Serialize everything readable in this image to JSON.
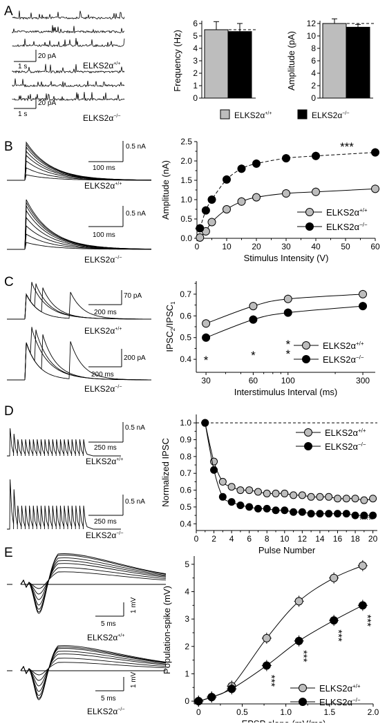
{
  "genotypes": {
    "wt_label": "ELKS2α+/+",
    "ko_label": "ELKS2α−/−",
    "wt_base": "ELKS2α",
    "wt_sup": "+/+",
    "ko_base": "ELKS2α",
    "ko_sup": "−/−",
    "wt_color": "#bdbdbd",
    "ko_color": "#000000"
  },
  "panelA": {
    "letter": "A",
    "scale_time": "1 s",
    "scale_current": "20 pA",
    "freq_chart": {
      "type": "bar",
      "ylabel": "Frequency (Hz)",
      "ylim": [
        0,
        6
      ],
      "yticks": [
        "0",
        "1",
        "2",
        "3",
        "4",
        "5",
        "6"
      ],
      "categories": [
        "ELKS2α+/+",
        "ELKS2α−/−"
      ],
      "values": [
        5.5,
        5.35
      ],
      "errors": [
        0.65,
        0.65
      ],
      "dashed_ref": 5.5
    },
    "amp_chart": {
      "type": "bar",
      "ylabel": "Amplitude (pA)",
      "ylim": [
        0,
        12
      ],
      "yticks": [
        "0",
        "2",
        "4",
        "6",
        "8",
        "10",
        "12"
      ],
      "categories": [
        "ELKS2α+/+",
        "ELKS2α−/−"
      ],
      "values": [
        12.0,
        11.4
      ],
      "errors": [
        0.75,
        0.45
      ],
      "dashed_ref": 12.0
    }
  },
  "panelB": {
    "letter": "B",
    "scale_time": "100 ms",
    "scale_current": "0.5 nA",
    "chart_data": {
      "type": "line",
      "xlabel": "Stimulus Intensity (V)",
      "ylabel": "Amplitude (nA)",
      "xlim": [
        0,
        60
      ],
      "ylim": [
        0,
        2.5
      ],
      "xticks": [
        "0",
        "10",
        "20",
        "30",
        "40",
        "50",
        "60"
      ],
      "yticks": [
        "0.0",
        "0.5",
        "1.0",
        "1.5",
        "2.0",
        "2.5"
      ],
      "x": [
        1,
        3,
        5,
        10,
        15,
        20,
        30,
        40,
        60
      ],
      "series": [
        {
          "name": "ELKS2α+/+",
          "values": [
            0.02,
            0.18,
            0.42,
            0.75,
            0.95,
            1.06,
            1.16,
            1.2,
            1.28
          ]
        },
        {
          "name": "ELKS2α−/−",
          "values": [
            0.26,
            0.72,
            1.0,
            1.52,
            1.8,
            1.93,
            2.07,
            2.13,
            2.22
          ]
        }
      ],
      "annotation": "***"
    }
  },
  "panelC": {
    "letter": "C",
    "wt_scale_current": "70 pA",
    "wt_scale_time": "200  ms",
    "ko_scale_current": "200 pA",
    "ko_scale_time": "200 ms",
    "chart_data": {
      "type": "line",
      "xlabel": "Interstimulus Interval (ms)",
      "ylabel_base": "IPSC",
      "ylabel_sub2": "2",
      "ylabel_mid": "/IPSC",
      "ylabel_sub1": "1",
      "x_scale": "log",
      "xlim": [
        26,
        360
      ],
      "ylim": [
        0.34,
        0.76
      ],
      "xticks": [
        "30",
        "60",
        "100",
        "300"
      ],
      "yticks": [
        "0.4",
        "0.5",
        "0.6",
        "0.7"
      ],
      "x": [
        30,
        60,
        100,
        300
      ],
      "series": [
        {
          "name": "ELKS2α+/+",
          "values": [
            0.565,
            0.645,
            0.678,
            0.7
          ]
        },
        {
          "name": "ELKS2α−/−",
          "values": [
            0.5,
            0.583,
            0.615,
            0.645
          ]
        }
      ],
      "annotations": [
        "*",
        "*",
        "*",
        "*"
      ]
    }
  },
  "panelD": {
    "letter": "D",
    "scale_current": "0.5 nA",
    "scale_time": "250 ms",
    "chart_data": {
      "type": "line",
      "xlabel": "Pulse Number",
      "ylabel": "Normalized IPSC",
      "xlim": [
        0,
        20.5
      ],
      "ylim": [
        0.36,
        1.05
      ],
      "xticks": [
        "0",
        "2",
        "4",
        "6",
        "8",
        "10",
        "12",
        "14",
        "16",
        "18",
        "20"
      ],
      "yticks": [
        "0.4",
        "0.5",
        "0.6",
        "0.7",
        "0.8",
        "0.9",
        "1.0"
      ],
      "x": [
        1,
        2,
        3,
        4,
        5,
        6,
        7,
        8,
        9,
        10,
        11,
        12,
        13,
        14,
        15,
        16,
        17,
        18,
        19,
        20
      ],
      "series": [
        {
          "name": "ELKS2α+/+",
          "values": [
            1.0,
            0.77,
            0.65,
            0.62,
            0.6,
            0.6,
            0.59,
            0.58,
            0.58,
            0.58,
            0.57,
            0.57,
            0.56,
            0.56,
            0.56,
            0.55,
            0.55,
            0.55,
            0.54,
            0.55
          ]
        },
        {
          "name": "ELKS2α−/−",
          "values": [
            1.0,
            0.72,
            0.56,
            0.53,
            0.51,
            0.5,
            0.49,
            0.49,
            0.48,
            0.48,
            0.47,
            0.47,
            0.46,
            0.46,
            0.46,
            0.46,
            0.46,
            0.45,
            0.45,
            0.45
          ]
        }
      ],
      "dashed_ref": 1.0,
      "annotation": "***"
    }
  },
  "panelE": {
    "letter": "E",
    "scale_time": "5 ms",
    "scale_voltage": "1 mV",
    "chart_data": {
      "type": "line",
      "xlabel": "EPSP slope (mV/ms)",
      "ylabel": "Population-spike (mV)",
      "xlim": [
        -0.05,
        2.0
      ],
      "ylim": [
        -0.1,
        5.3
      ],
      "xticks": [
        "0",
        "0.5",
        "1.0",
        "1.5",
        "2.0"
      ],
      "yticks": [
        "0",
        "1",
        "2",
        "3",
        "4",
        "5"
      ],
      "series": [
        {
          "name": "ELKS2α+/+",
          "x": [
            0.0,
            0.15,
            0.38,
            0.78,
            1.15,
            1.55,
            1.88
          ],
          "values": [
            0.0,
            0.15,
            0.55,
            2.3,
            3.65,
            4.5,
            4.95
          ]
        },
        {
          "name": "ELKS2α−/−",
          "x": [
            0.0,
            0.15,
            0.38,
            0.78,
            1.15,
            1.55,
            1.88
          ],
          "values": [
            0.0,
            0.15,
            0.45,
            1.3,
            2.2,
            2.95,
            3.5
          ]
        }
      ],
      "annotations": [
        "***",
        "***",
        "***",
        "***"
      ]
    }
  }
}
